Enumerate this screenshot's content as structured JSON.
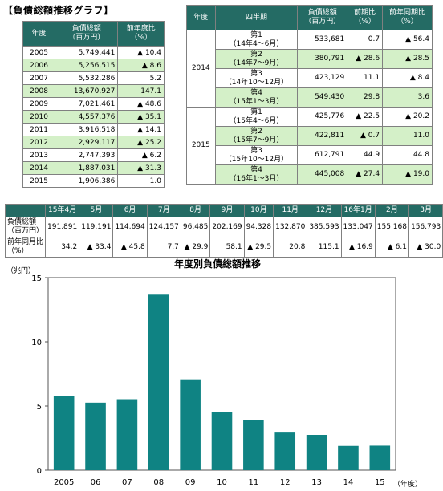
{
  "title": "【負債総額推移グラフ】",
  "annual_table": {
    "headers": [
      "年度",
      "負債総額\n（百万円）",
      "前年度比\n（%）"
    ],
    "rows": [
      {
        "year": "2005",
        "amount": "5,749,441",
        "ratio": "▲ 10.4",
        "hl": false
      },
      {
        "year": "2006",
        "amount": "5,256,515",
        "ratio": "▲ 8.6",
        "hl": true
      },
      {
        "year": "2007",
        "amount": "5,532,286",
        "ratio": "5.2",
        "hl": false
      },
      {
        "year": "2008",
        "amount": "13,670,927",
        "ratio": "147.1",
        "hl": true
      },
      {
        "year": "2009",
        "amount": "7,021,461",
        "ratio": "▲ 48.6",
        "hl": false
      },
      {
        "year": "2010",
        "amount": "4,557,376",
        "ratio": "▲ 35.1",
        "hl": true
      },
      {
        "year": "2011",
        "amount": "3,916,518",
        "ratio": "▲ 14.1",
        "hl": false
      },
      {
        "year": "2012",
        "amount": "2,929,117",
        "ratio": "▲ 25.2",
        "hl": true
      },
      {
        "year": "2013",
        "amount": "2,747,393",
        "ratio": "▲ 6.2",
        "hl": false
      },
      {
        "year": "2014",
        "amount": "1,887,031",
        "ratio": "▲ 31.3",
        "hl": true
      },
      {
        "year": "2015",
        "amount": "1,906,386",
        "ratio": "1.0",
        "hl": false
      }
    ]
  },
  "quarter_table": {
    "headers": [
      "年度",
      "四半期",
      "負債総額\n（百万円）",
      "前期比\n（%）",
      "前年同期比\n（%）"
    ],
    "groups": [
      {
        "year": "2014",
        "rows": [
          {
            "q1": "第1",
            "q2": "（14年4～6月）",
            "amount": "533,681",
            "prev": "0.7",
            "yoy": "▲ 56.4",
            "hl": false
          },
          {
            "q1": "第2",
            "q2": "（14年7～9月）",
            "amount": "380,791",
            "prev": "▲ 28.6",
            "yoy": "▲ 28.5",
            "hl": true
          },
          {
            "q1": "第3",
            "q2": "（14年10～12月）",
            "amount": "423,129",
            "prev": "11.1",
            "yoy": "▲ 8.4",
            "hl": false
          },
          {
            "q1": "第4",
            "q2": "（15年1～3月）",
            "amount": "549,430",
            "prev": "29.8",
            "yoy": "3.6",
            "hl": true
          }
        ]
      },
      {
        "year": "2015",
        "rows": [
          {
            "q1": "第1",
            "q2": "（15年4～6月）",
            "amount": "425,776",
            "prev": "▲ 22.5",
            "yoy": "▲ 20.2",
            "hl": false
          },
          {
            "q1": "第2",
            "q2": "（15年7～9月）",
            "amount": "422,811",
            "prev": "▲ 0.7",
            "yoy": "11.0",
            "hl": true
          },
          {
            "q1": "第3",
            "q2": "（15年10～12月）",
            "amount": "612,791",
            "prev": "44.9",
            "yoy": "44.8",
            "hl": false
          },
          {
            "q1": "第4",
            "q2": "（16年1～3月）",
            "amount": "445,008",
            "prev": "▲ 27.4",
            "yoy": "▲ 19.0",
            "hl": true
          }
        ]
      }
    ]
  },
  "monthly_table": {
    "months": [
      "15年4月",
      "5月",
      "6月",
      "7月",
      "8月",
      "9月",
      "10月",
      "11月",
      "12月",
      "16年1月",
      "2月",
      "3月"
    ],
    "row1_label": "負債総額\n（百万円）",
    "row1": [
      "191,891",
      "119,191",
      "114,694",
      "124,157",
      "96,485",
      "202,169",
      "94,328",
      "132,870",
      "385,593",
      "133,047",
      "155,168",
      "156,793"
    ],
    "row2_label": "前年同月比\n（%）",
    "row2": [
      "34.2",
      "▲ 33.4",
      "▲ 45.8",
      "7.7",
      "▲ 29.9",
      "58.1",
      "▲ 29.5",
      "20.8",
      "115.1",
      "▲ 16.9",
      "▲ 6.1",
      "▲ 30.0"
    ]
  },
  "chart_data": {
    "type": "bar",
    "title": "年度別負債総額推移",
    "ylabel": "（兆円）",
    "xlabel": "（年度）",
    "categories": [
      "2005",
      "06",
      "07",
      "08",
      "09",
      "10",
      "11",
      "12",
      "13",
      "14",
      "15"
    ],
    "values": [
      5.75,
      5.26,
      5.53,
      13.67,
      7.02,
      4.56,
      3.92,
      2.93,
      2.75,
      1.89,
      1.91
    ],
    "ylim": [
      0,
      15
    ],
    "yticks": [
      "0",
      "5",
      "10",
      "15"
    ],
    "grid": false,
    "bar_color": "#0f8383"
  }
}
